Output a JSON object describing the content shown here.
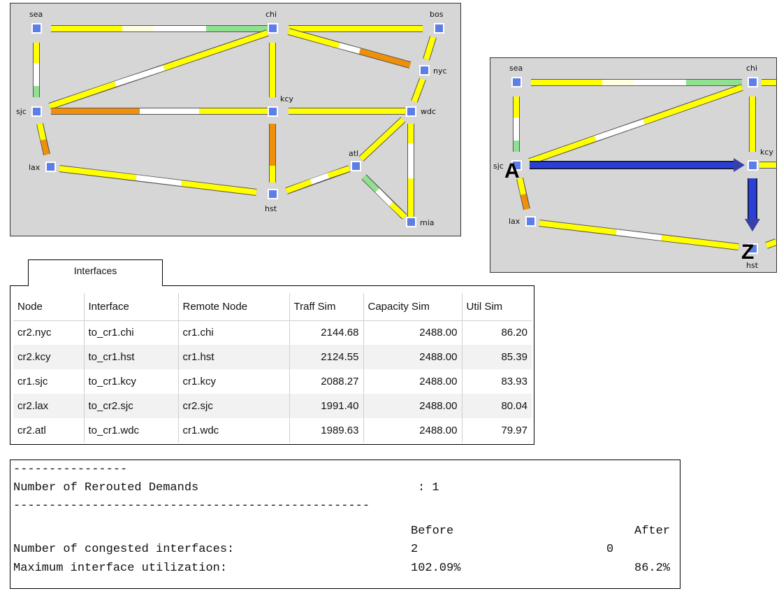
{
  "network_map_left": {
    "nodes": [
      "sea",
      "chi",
      "bos",
      "nyc",
      "sjc",
      "kcy",
      "wdc",
      "atl",
      "lax",
      "hst",
      "mia"
    ],
    "colors": {
      "background": "#d6d6d6",
      "node": "#5b7ee8",
      "low": "#ffff00",
      "medium": "#ffffff",
      "high": "#7fe07f",
      "congested": "#f0900a"
    }
  },
  "network_map_right": {
    "nodes": [
      "sea",
      "chi",
      "sjc",
      "kcy",
      "lax",
      "hst"
    ],
    "source_marker": "A",
    "destination_marker": "Z",
    "colors": {
      "path": "#2a3fd8"
    }
  },
  "interfaces_tab": {
    "label": "Interfaces"
  },
  "interfaces_table": {
    "headers": [
      "Node",
      "Interface",
      "Remote Node",
      "Traff Sim",
      "Capacity Sim",
      "Util Sim"
    ],
    "rows": [
      [
        "cr2.nyc",
        "to_cr1.chi",
        "cr1.chi",
        "2144.68",
        "2488.00",
        "86.20"
      ],
      [
        "cr2.kcy",
        "to_cr1.hst",
        "cr1.hst",
        "2124.55",
        "2488.00",
        "85.39"
      ],
      [
        "cr1.sjc",
        "to_cr1.kcy",
        "cr1.kcy",
        "2088.27",
        "2488.00",
        "83.93"
      ],
      [
        "cr2.lax",
        "to_cr2.sjc",
        "cr2.sjc",
        "1991.40",
        "2488.00",
        "80.04"
      ],
      [
        "cr2.atl",
        "to_cr1.wdc",
        "cr1.wdc",
        "1989.63",
        "2488.00",
        "79.97"
      ]
    ]
  },
  "report": {
    "divider_short": "----------------",
    "rerouted_label": "Number of Rerouted Demands",
    "rerouted_value": ": 1",
    "divider_long": "--------------------------------------------------",
    "before_header": "Before",
    "after_header": "After",
    "congested_label": "Number of congested interfaces:",
    "congested_before": "2",
    "congested_after": "0",
    "max_util_label": "Maximum interface utilization:",
    "max_util_before": "102.09%",
    "max_util_after": "86.2%"
  }
}
